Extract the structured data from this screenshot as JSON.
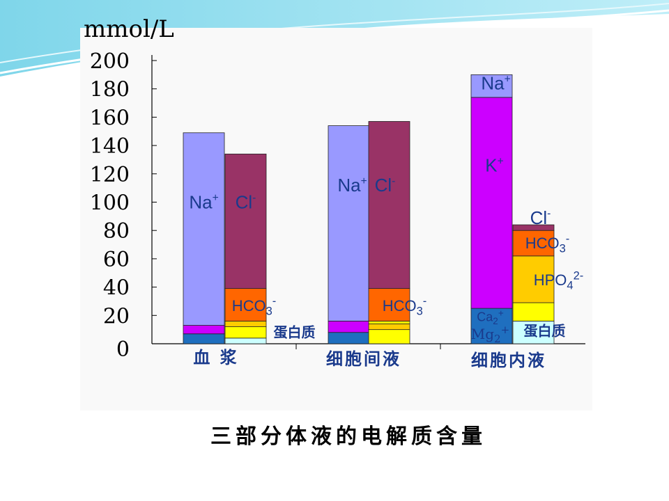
{
  "page": {
    "caption": "三部分体液的电解质含量"
  },
  "colors": {
    "Na+": "#9999ff",
    "Cl-": "#993366",
    "HCO3-": "#ff6600",
    "K+": "#cc00ff",
    "HPO4 2-": "#ffcc00",
    "Ca2+ Mg2+": "#1f6fbf",
    "蛋白质": "#ffff00",
    "other_yellow": "#ffcc00",
    "light_blue": "#ccffff",
    "Na+ cap": "#9999ff"
  },
  "chart_data": {
    "type": "bar",
    "stacked": true,
    "ylabel": "mmol/L",
    "ylim": [
      0,
      200
    ],
    "yticks": [
      "0",
      "20",
      "40",
      "60",
      "80",
      "100",
      "120",
      "140",
      "160",
      "180",
      "200"
    ],
    "categories": [
      "血 浆",
      "细胞间液",
      "细胞内液"
    ],
    "groups": [
      {
        "category": "血 浆",
        "bars": [
          {
            "name": "cations",
            "segments": [
              {
                "label": "Ca2+ Mg2+",
                "from": 0,
                "to": 7,
                "color": "#1f6fbf"
              },
              {
                "label": "K+",
                "from": 7,
                "to": 13,
                "color": "#cc00ff"
              },
              {
                "label": "Na+",
                "from": 13,
                "to": 149,
                "color": "#9999ff"
              }
            ]
          },
          {
            "name": "anions",
            "segments": [
              {
                "label": "other",
                "from": 0,
                "to": 4,
                "color": "#ccffff"
              },
              {
                "label": "蛋白质",
                "from": 4,
                "to": 12,
                "color": "#ffff00"
              },
              {
                "label": "other",
                "from": 12,
                "to": 16,
                "color": "#ffcc00"
              },
              {
                "label": "HCO3-",
                "from": 16,
                "to": 39,
                "color": "#ff6600"
              },
              {
                "label": "Cl-",
                "from": 39,
                "to": 134,
                "color": "#993366"
              }
            ]
          }
        ]
      },
      {
        "category": "细胞间液",
        "bars": [
          {
            "name": "cations",
            "segments": [
              {
                "label": "Ca2+ Mg2+",
                "from": 0,
                "to": 8,
                "color": "#1f6fbf"
              },
              {
                "label": "K+",
                "from": 8,
                "to": 16,
                "color": "#cc00ff"
              },
              {
                "label": "Na+",
                "from": 16,
                "to": 154,
                "color": "#9999ff"
              }
            ]
          },
          {
            "name": "anions",
            "segments": [
              {
                "label": "蛋白质",
                "from": 0,
                "to": 10,
                "color": "#ffff00"
              },
              {
                "label": "other",
                "from": 10,
                "to": 14,
                "color": "#ffcc00"
              },
              {
                "label": "other",
                "from": 14,
                "to": 16,
                "color": "#ffff00"
              },
              {
                "label": "HCO3-",
                "from": 16,
                "to": 39,
                "color": "#ff6600"
              },
              {
                "label": "Cl-",
                "from": 39,
                "to": 157,
                "color": "#993366"
              }
            ]
          }
        ]
      },
      {
        "category": "细胞内液",
        "bars": [
          {
            "name": "cations",
            "segments": [
              {
                "label": "Ca2+ Mg2+",
                "from": 0,
                "to": 25,
                "color": "#1f6fbf"
              },
              {
                "label": "K+",
                "from": 25,
                "to": 174,
                "color": "#cc00ff"
              },
              {
                "label": "Na+",
                "from": 174,
                "to": 190,
                "color": "#9999ff"
              }
            ]
          },
          {
            "name": "anions",
            "segments": [
              {
                "label": "蛋白质",
                "from": 0,
                "to": 16,
                "color": "#ccffff"
              },
              {
                "label": "other",
                "from": 16,
                "to": 29,
                "color": "#ffff00"
              },
              {
                "label": "HPO4 2-",
                "from": 29,
                "to": 62,
                "color": "#ffcc00"
              },
              {
                "label": "HCO3-",
                "from": 62,
                "to": 80,
                "color": "#ff6600"
              },
              {
                "label": "Cl-",
                "from": 80,
                "to": 84,
                "color": "#993366"
              }
            ]
          }
        ]
      }
    ],
    "annotations": [
      {
        "id": "plasma-na",
        "text": "Na+",
        "group": 0,
        "bar": 0,
        "value": 100
      },
      {
        "id": "plasma-cl",
        "text": "Cl-",
        "group": 0,
        "bar": 1,
        "value": 100
      },
      {
        "id": "plasma-hco3",
        "text": "HCO3-",
        "group": 0,
        "bar": 1,
        "value": 27
      },
      {
        "id": "plasma-protein",
        "text": "蛋白质",
        "group": 0,
        "bar": 1,
        "value": 8
      },
      {
        "id": "interstitial-na",
        "text": "Na+",
        "group": 1,
        "bar": 0,
        "value": 112
      },
      {
        "id": "interstitial-cl",
        "text": "Cl-",
        "group": 1,
        "bar": 1,
        "value": 112
      },
      {
        "id": "interstitial-hco3",
        "text": "HCO3-",
        "group": 1,
        "bar": 1,
        "value": 27
      },
      {
        "id": "intracellular-na",
        "text": "Na+",
        "group": 2,
        "bar": 0,
        "value": 184
      },
      {
        "id": "intracellular-k",
        "text": "K+",
        "group": 2,
        "bar": 0,
        "value": 126
      },
      {
        "id": "intracellular-ca",
        "text": "Ca2+",
        "group": 2,
        "bar": 0,
        "value": 19
      },
      {
        "id": "intracellular-mg",
        "text": "Mg2+",
        "group": 2,
        "bar": 0,
        "value": 7
      },
      {
        "id": "intracellular-cl",
        "text": "Cl-",
        "group": 2,
        "bar": 1,
        "value": 89
      },
      {
        "id": "intracellular-hco3",
        "text": "HCO3-",
        "group": 2,
        "bar": 1,
        "value": 71
      },
      {
        "id": "intracellular-hpo4",
        "text": "HPO4 2-",
        "group": 2,
        "bar": 1,
        "value": 45
      },
      {
        "id": "intracellular-protein",
        "text": "蛋白质",
        "group": 2,
        "bar": 1,
        "value": 9
      }
    ]
  }
}
